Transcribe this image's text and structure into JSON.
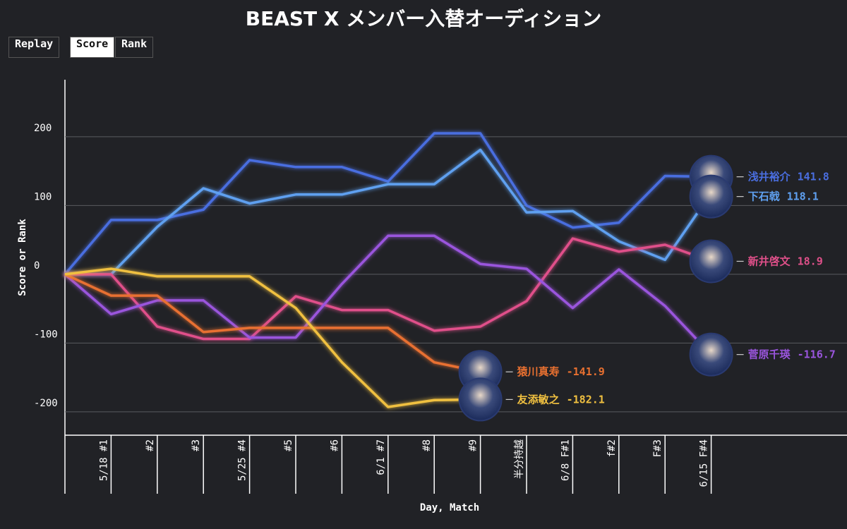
{
  "controls": {
    "replay": "Replay",
    "score": "Score",
    "rank": "Rank"
  },
  "chart_data": {
    "type": "line",
    "title": "BEAST X メンバー入替オーディション",
    "ylabel": "Score or Rank",
    "xlabel": "Day, Match",
    "categories": [
      null,
      "5/18 #1",
      "#2",
      "#3",
      "5/25 #4",
      "#5",
      "#6",
      "6/1 #7",
      "#8",
      "#9",
      "半分持越",
      "6/8 F#1",
      "f#2",
      "F#3",
      "6/15 F#4"
    ],
    "ylim": [
      -234,
      283
    ],
    "yticks": [
      -200,
      -100,
      0,
      100,
      200
    ],
    "grid": true,
    "series": [
      {
        "name": "浅井裕介",
        "color": "#4a6ee0",
        "values": [
          0,
          79,
          79,
          94,
          166,
          156,
          156,
          135,
          205,
          205,
          100,
          68,
          75,
          143,
          141.8
        ]
      },
      {
        "name": "下石戟",
        "color": "#5fa0f0",
        "values": [
          0,
          0,
          69,
          125,
          103,
          116,
          116,
          131,
          131,
          181,
          90,
          92,
          48,
          21,
          118.1
        ]
      },
      {
        "name": "新井啓文",
        "color": "#e0508a",
        "values": [
          0,
          0,
          -76,
          -94,
          -94,
          -32,
          -52,
          -52,
          -82,
          -76,
          -39,
          52,
          33,
          43,
          18.9
        ]
      },
      {
        "name": "菅原千瑛",
        "color": "#9a55dd",
        "values": [
          0,
          -58,
          -38,
          -38,
          -92,
          -92,
          -14,
          56,
          56,
          15,
          8,
          -49,
          7,
          -46,
          -116.7
        ]
      },
      {
        "name": "猿川真寿",
        "color": "#e87030",
        "values": [
          0,
          -31,
          -31,
          -84,
          -78,
          -78,
          -78,
          -78,
          -128,
          -141.9,
          null,
          null,
          null,
          null,
          null
        ]
      },
      {
        "name": "友添敏之",
        "color": "#f0c040",
        "values": [
          0,
          8,
          -3,
          -3,
          -3,
          -49,
          -128,
          -193,
          -183,
          -182.1,
          null,
          null,
          null,
          null,
          null
        ]
      }
    ]
  }
}
